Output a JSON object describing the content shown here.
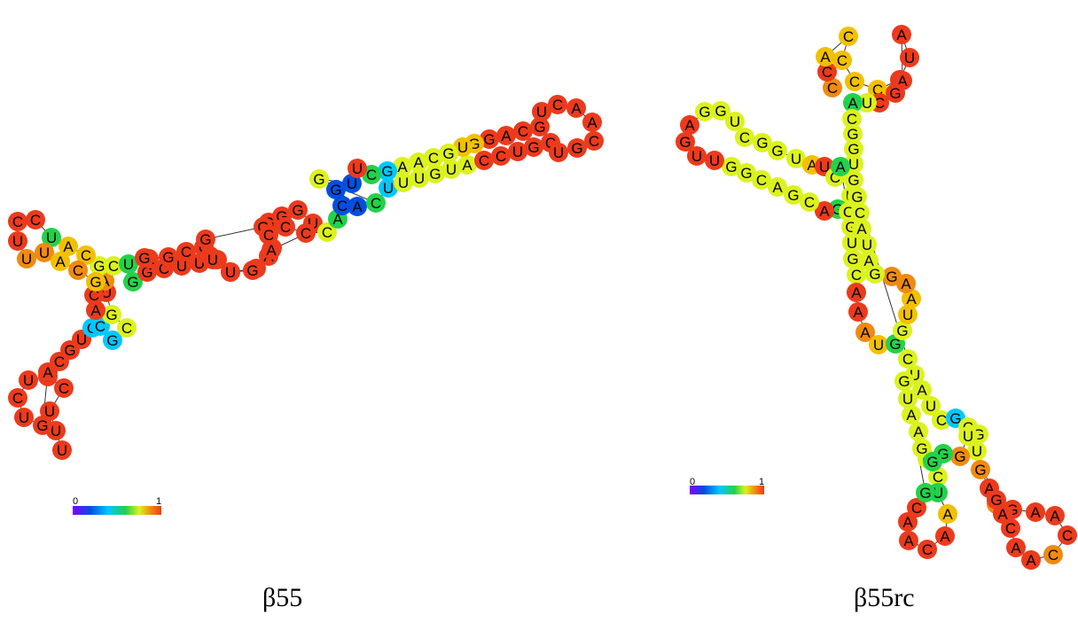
{
  "colors": {
    "palette": [
      "#7f00ff",
      "#0050e0",
      "#00c8ff",
      "#22d24a",
      "#dcf21e",
      "#f2c000",
      "#f08a10",
      "#ec3a1c"
    ],
    "stroke": "#333333"
  },
  "structures": [
    {
      "caption": "β55",
      "scale_min": "0",
      "scale_max": "1",
      "sequence": "UUACGGCCUGCGUUUUAUGGCUCCUUUGCAGGGAGGGUGGUGCUUAGGCUUAAUAAGAAUGUGGGGUGGUAGCAGCCUGCUGGAACGAGCAGCUUACUAGAGGAGUUAUCUGACGUUUAACCGAGAUUGGAGGGGAUAUGAG",
      "title": ""
    }
  ],
  "right": {
    "caption": "β55rc",
    "scale_min": "0",
    "scale_max": "1"
  },
  "left": {
    "caption": "β55",
    "scale_min": "0",
    "scale_max": "1"
  }
}
